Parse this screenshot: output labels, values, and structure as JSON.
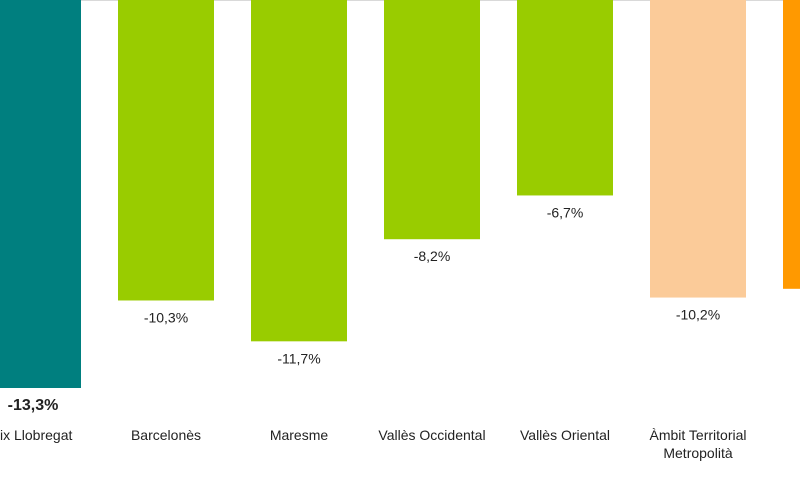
{
  "chart_data": {
    "type": "bar",
    "categories": [
      "ix Llobregat",
      "Barcelonès",
      "Maresme",
      "Vallès Occidental",
      "Vallès Oriental",
      "Àmbit Territorial\nMetropolità",
      ""
    ],
    "values": [
      -13.3,
      -10.3,
      -11.7,
      -8.2,
      -6.7,
      -10.2,
      -9.9
    ],
    "value_labels": [
      "-13,3%",
      "-10,3%",
      "-11,7%",
      "-8,2%",
      "-6,7%",
      "-10,2%",
      ""
    ],
    "colors": [
      "#007F7F",
      "#99CC00",
      "#99CC00",
      "#99CC00",
      "#99CC00",
      "#FBCB99",
      "#FF9900"
    ],
    "bold_labels": [
      true,
      false,
      false,
      false,
      false,
      false,
      false
    ],
    "title": "",
    "xlabel": "",
    "ylabel": "",
    "ylim": [
      -13.3,
      0
    ],
    "grid": false,
    "legend": "none"
  }
}
